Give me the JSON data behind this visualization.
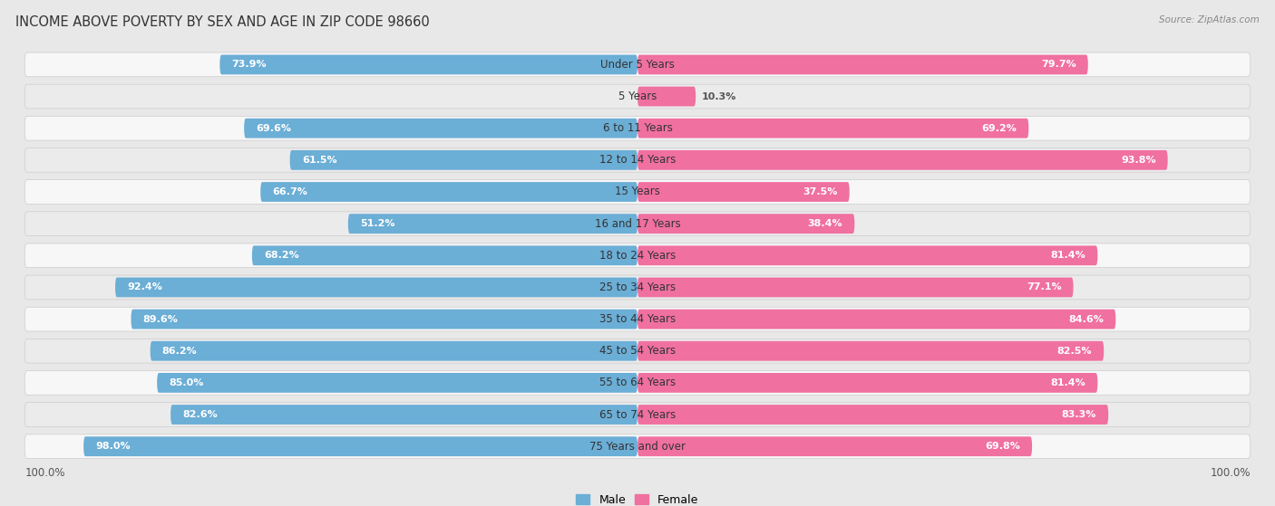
{
  "title": "INCOME ABOVE POVERTY BY SEX AND AGE IN ZIP CODE 98660",
  "source": "Source: ZipAtlas.com",
  "categories": [
    "Under 5 Years",
    "5 Years",
    "6 to 11 Years",
    "12 to 14 Years",
    "15 Years",
    "16 and 17 Years",
    "18 to 24 Years",
    "25 to 34 Years",
    "35 to 44 Years",
    "45 to 54 Years",
    "55 to 64 Years",
    "65 to 74 Years",
    "75 Years and over"
  ],
  "male_values": [
    73.9,
    0.0,
    69.6,
    61.5,
    66.7,
    51.2,
    68.2,
    92.4,
    89.6,
    86.2,
    85.0,
    82.6,
    98.0
  ],
  "female_values": [
    79.7,
    10.3,
    69.2,
    93.8,
    37.5,
    38.4,
    81.4,
    77.1,
    84.6,
    82.5,
    81.4,
    83.3,
    69.8
  ],
  "male_color": "#6baed6",
  "female_color": "#f070a0",
  "male_light_color": "#c6dbef",
  "female_light_color": "#fcc5d8",
  "bg_color": "#e8e8e8",
  "row_odd_color": "#f7f7f7",
  "row_even_color": "#ebebeb",
  "title_fontsize": 10.5,
  "label_fontsize": 8.5,
  "value_fontsize": 8,
  "legend_fontsize": 9,
  "axis_label_fontsize": 8.5
}
